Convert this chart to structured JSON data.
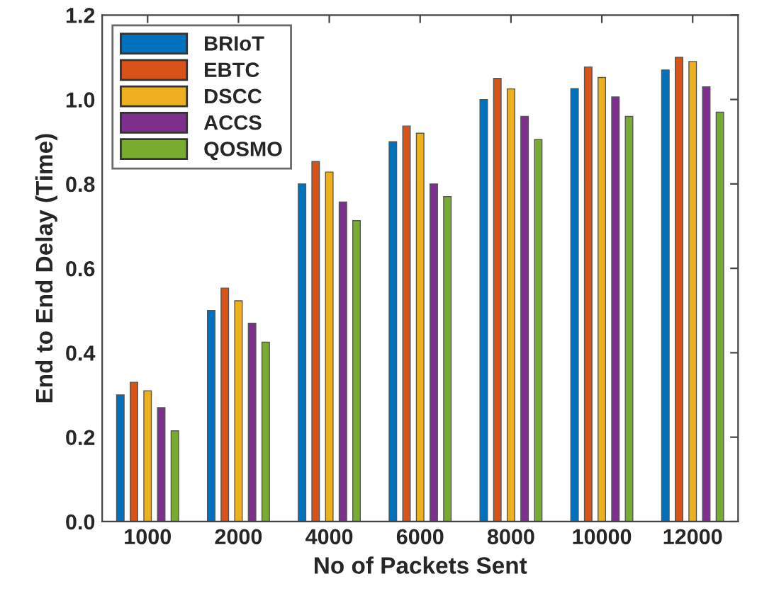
{
  "chart_data": {
    "type": "bar",
    "xlabel": "No of Packets Sent",
    "ylabel": "End to End Delay (Time)",
    "categories": [
      "1000",
      "2000",
      "4000",
      "6000",
      "8000",
      "10000",
      "12000"
    ],
    "series": [
      {
        "name": "BRIoT",
        "color": "#0072bd",
        "values": [
          0.3,
          0.5,
          0.8,
          0.9,
          1.0,
          1.026,
          1.07
        ]
      },
      {
        "name": "EBTC",
        "color": "#d95319",
        "values": [
          0.33,
          0.553,
          0.853,
          0.937,
          1.05,
          1.077,
          1.1
        ]
      },
      {
        "name": "DSCC",
        "color": "#edb120",
        "values": [
          0.31,
          0.523,
          0.828,
          0.92,
          1.025,
          1.052,
          1.09
        ]
      },
      {
        "name": "ACCS",
        "color": "#7e2f8e",
        "values": [
          0.27,
          0.47,
          0.757,
          0.8,
          0.96,
          1.006,
          1.03
        ]
      },
      {
        "name": "QOSMO",
        "color": "#77ac30",
        "values": [
          0.215,
          0.425,
          0.713,
          0.77,
          0.905,
          0.96,
          0.97
        ]
      }
    ],
    "ylim": [
      0,
      1.2
    ],
    "yticks": [
      {
        "value": 0,
        "label": "0.0"
      },
      0.2,
      0.4,
      0.6,
      0.8,
      {
        "value": 1.0,
        "label": "1.0"
      },
      1.2
    ],
    "legend": "top left",
    "grid": false
  }
}
